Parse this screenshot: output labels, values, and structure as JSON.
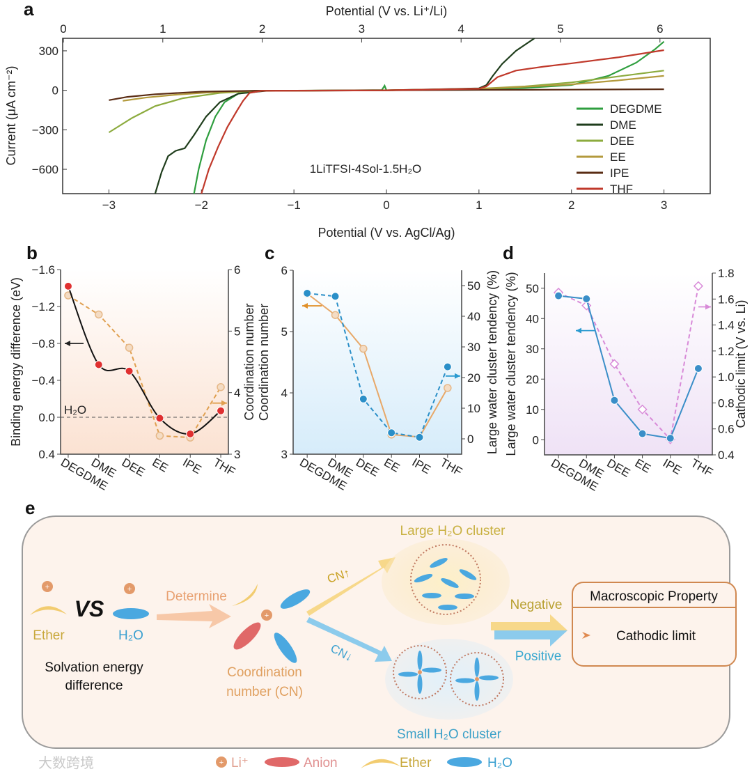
{
  "panel_labels": [
    "a",
    "b",
    "c",
    "d",
    "e"
  ],
  "categories": [
    "DEGDME",
    "DME",
    "DEE",
    "EE",
    "IPE",
    "THF"
  ],
  "chart_data": [
    {
      "panel": "a",
      "type": "line",
      "xlabel": "Potential (V vs. AgCl/Ag)",
      "x2label": "Potential (V vs. Li⁺/Li)",
      "ylabel": "Current (μA cm⁻²)",
      "xlim": [
        -3.5,
        3.5
      ],
      "x2lim": [
        0,
        6.5
      ],
      "ylim": [
        -785,
        395
      ],
      "xticks": [
        -3,
        -2,
        -1,
        0,
        1,
        2,
        3
      ],
      "x2ticks": [
        0,
        1,
        2,
        3,
        4,
        5,
        6
      ],
      "yticks": [
        300,
        0,
        -300,
        -600
      ],
      "annotation": "1LiTFSI-4Sol-1.5H₂O",
      "legend_position": "right",
      "series": [
        {
          "name": "DEGDME",
          "color": "#2e9e3e",
          "cathodic": [
            [
              0,
              0
            ],
            [
              -0.02,
              35
            ],
            [
              -0.05,
              2
            ],
            [
              -1.4,
              -5
            ],
            [
              -1.6,
              -25
            ],
            [
              -1.75,
              -90
            ],
            [
              -1.85,
              -200
            ],
            [
              -1.95,
              -380
            ],
            [
              -2.03,
              -600
            ],
            [
              -2.08,
              -785
            ]
          ],
          "anodic": [
            [
              0,
              0
            ],
            [
              1,
              8
            ],
            [
              1.5,
              18
            ],
            [
              2,
              40
            ],
            [
              2.4,
              110
            ],
            [
              2.7,
              210
            ],
            [
              2.9,
              310
            ],
            [
              3,
              370
            ]
          ]
        },
        {
          "name": "DME",
          "color": "#1f3d1c",
          "cathodic": [
            [
              0,
              0
            ],
            [
              -1.3,
              -4
            ],
            [
              -1.6,
              -25
            ],
            [
              -1.8,
              -90
            ],
            [
              -1.95,
              -200
            ],
            [
              -2.08,
              -340
            ],
            [
              -2.18,
              -440
            ],
            [
              -2.28,
              -460
            ],
            [
              -2.36,
              -500
            ],
            [
              -2.43,
              -620
            ],
            [
              -2.5,
              -785
            ]
          ],
          "anodic": [
            [
              0,
              0
            ],
            [
              1,
              15
            ],
            [
              1.08,
              40
            ],
            [
              1.15,
              110
            ],
            [
              1.25,
              200
            ],
            [
              1.4,
              300
            ],
            [
              1.6,
              395
            ]
          ]
        },
        {
          "name": "DEE",
          "color": "#8cab3e",
          "cathodic": [
            [
              0,
              0
            ],
            [
              -1.4,
              -4
            ],
            [
              -1.8,
              -20
            ],
            [
              -2.2,
              -60
            ],
            [
              -2.5,
              -120
            ],
            [
              -2.75,
              -210
            ],
            [
              -3,
              -320
            ]
          ],
          "anodic": [
            [
              0,
              0
            ],
            [
              1,
              12
            ],
            [
              1.5,
              30
            ],
            [
              2,
              60
            ],
            [
              2.5,
              105
            ],
            [
              3,
              150
            ]
          ]
        },
        {
          "name": "EE",
          "color": "#b39a3c",
          "cathodic": [
            [
              0,
              0
            ],
            [
              -1.4,
              -3
            ],
            [
              -1.9,
              -15
            ],
            [
              -2.3,
              -35
            ],
            [
              -2.6,
              -55
            ],
            [
              -2.85,
              -80
            ]
          ],
          "anodic": [
            [
              0,
              0
            ],
            [
              1,
              10
            ],
            [
              2,
              45
            ],
            [
              2.5,
              75
            ],
            [
              3,
              110
            ]
          ]
        },
        {
          "name": "IPE",
          "color": "#5a2c14",
          "cathodic": [
            [
              0,
              0
            ],
            [
              -1.4,
              -3
            ],
            [
              -2,
              -10
            ],
            [
              -2.5,
              -30
            ],
            [
              -2.8,
              -50
            ],
            [
              -3,
              -75
            ]
          ],
          "anodic": [
            [
              0,
              0
            ],
            [
              1,
              3
            ],
            [
              2,
              5
            ],
            [
              3,
              8
            ]
          ]
        },
        {
          "name": "THF",
          "color": "#c0392b",
          "cathodic": [
            [
              0,
              0
            ],
            [
              -1.35,
              -4
            ],
            [
              -1.48,
              -20
            ],
            [
              -1.55,
              -80
            ],
            [
              -1.62,
              -160
            ],
            [
              -1.72,
              -280
            ],
            [
              -1.82,
              -430
            ],
            [
              -1.92,
              -600
            ],
            [
              -2,
              -785
            ]
          ],
          "anodic": [
            [
              0,
              0
            ],
            [
              1,
              12
            ],
            [
              1.08,
              30
            ],
            [
              1.2,
              100
            ],
            [
              1.4,
              150
            ],
            [
              1.7,
              180
            ],
            [
              2,
              205
            ],
            [
              2.5,
              250
            ],
            [
              3,
              305
            ]
          ]
        }
      ]
    },
    {
      "panel": "b",
      "type": "line",
      "ylabel": "Binding energy difference (eV)",
      "y2label": "Coordination number",
      "ylim": [
        -1.6,
        0.4
      ],
      "yticks": [
        -1.6,
        -1.2,
        -0.8,
        -0.4,
        0.0,
        0.4
      ],
      "ytick_labels": [
        "−1.6",
        "−1.2",
        "−0.8",
        "−0.4",
        "0.0",
        "0.4"
      ],
      "y2lim": [
        3,
        6
      ],
      "y2ticks": [
        3,
        4,
        5,
        6
      ],
      "reference_line": {
        "value": 0.0,
        "label": "H₂O"
      },
      "series": [
        {
          "name": "Binding energy difference",
          "axis": "left",
          "color": "#e03030",
          "values": [
            -1.42,
            -0.57,
            -0.5,
            0.01,
            0.18,
            -0.07
          ]
        },
        {
          "name": "Coordination number",
          "axis": "right",
          "color": "#e0a050",
          "values": [
            5.58,
            5.27,
            4.73,
            3.3,
            3.27,
            4.09
          ]
        }
      ]
    },
    {
      "panel": "c",
      "type": "line",
      "ylabel": "Coordination number",
      "y2label": "Large water cluster tendency (%)",
      "ylim": [
        3,
        6
      ],
      "yticks": [
        3,
        4,
        5,
        6
      ],
      "y2lim": [
        -5,
        55
      ],
      "y2ticks": [
        0,
        10,
        20,
        30,
        40,
        50
      ],
      "series": [
        {
          "name": "Coordination number",
          "axis": "left",
          "color": "#e8a868",
          "values": [
            5.62,
            5.27,
            4.72,
            3.32,
            3.28,
            4.08
          ]
        },
        {
          "name": "Large water cluster tendency",
          "axis": "right",
          "color": "#2a8fc8",
          "values": [
            47.5,
            46.5,
            13,
            2,
            0.5,
            23.5
          ]
        }
      ]
    },
    {
      "panel": "d",
      "type": "line",
      "ylabel": "Large water cluster tendency (%)",
      "y2label": "Cathodic limit (V vs. Li)",
      "ylim": [
        -5,
        55
      ],
      "yticks": [
        0,
        10,
        20,
        30,
        40,
        50
      ],
      "y2lim": [
        0.4,
        1.8
      ],
      "y2ticks": [
        0.4,
        0.6,
        0.8,
        1.0,
        1.2,
        1.4,
        1.6,
        1.8
      ],
      "y2tick_labels": [
        "0.4",
        "0.6",
        "0.8",
        "1.0",
        "1.2",
        "1.4",
        "1.6",
        "1.8"
      ],
      "series": [
        {
          "name": "Large water cluster tendency",
          "axis": "left",
          "color": "#3a8ec8",
          "values": [
            47.5,
            46.5,
            13,
            2,
            0.5,
            23.5
          ]
        },
        {
          "name": "Cathodic limit",
          "axis": "right",
          "color": "#d88ad8",
          "values": [
            1.65,
            1.55,
            1.1,
            0.75,
            0.52,
            1.7
          ]
        }
      ]
    }
  ],
  "diagram": {
    "ether": "Ether",
    "vs": "VS",
    "h2o": "H₂O",
    "solvation_line1": "Solvation energy",
    "solvation_line2": "difference",
    "determine": "Determine",
    "cn_line1": "Coordination",
    "cn_line2": "number (CN)",
    "cn_up": "CN↑",
    "cn_down": "CN↓",
    "large_cluster": "Large H₂O cluster",
    "small_cluster": "Small H₂O cluster",
    "negative": "Negative",
    "positive": "Positive",
    "box_title": "Macroscopic Property",
    "box_item": "Cathodic limit",
    "legend": {
      "li": "Li⁺",
      "anion": "Anion",
      "ether": "Ether",
      "h2o": "H₂O"
    },
    "colors": {
      "ether": "#c8a83c",
      "h2o": "#3aa0d0",
      "orange": "#e0a060",
      "anion": "#e06868"
    }
  },
  "watermark": "大数跨境"
}
